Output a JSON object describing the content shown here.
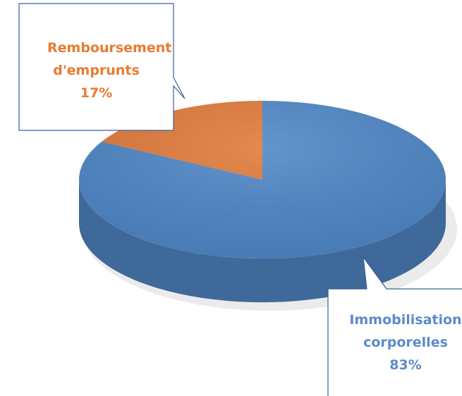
{
  "chart_data": {
    "type": "pie",
    "categories": [
      "Immobilisation corporelles",
      "Remboursement d'emprunts"
    ],
    "values": [
      83,
      17
    ],
    "value_labels": [
      "83%",
      "17%"
    ],
    "colors": [
      "#4f86c6",
      "#e07a3a"
    ],
    "label_colors": [
      "#5b8bc9",
      "#ea7a32"
    ]
  }
}
